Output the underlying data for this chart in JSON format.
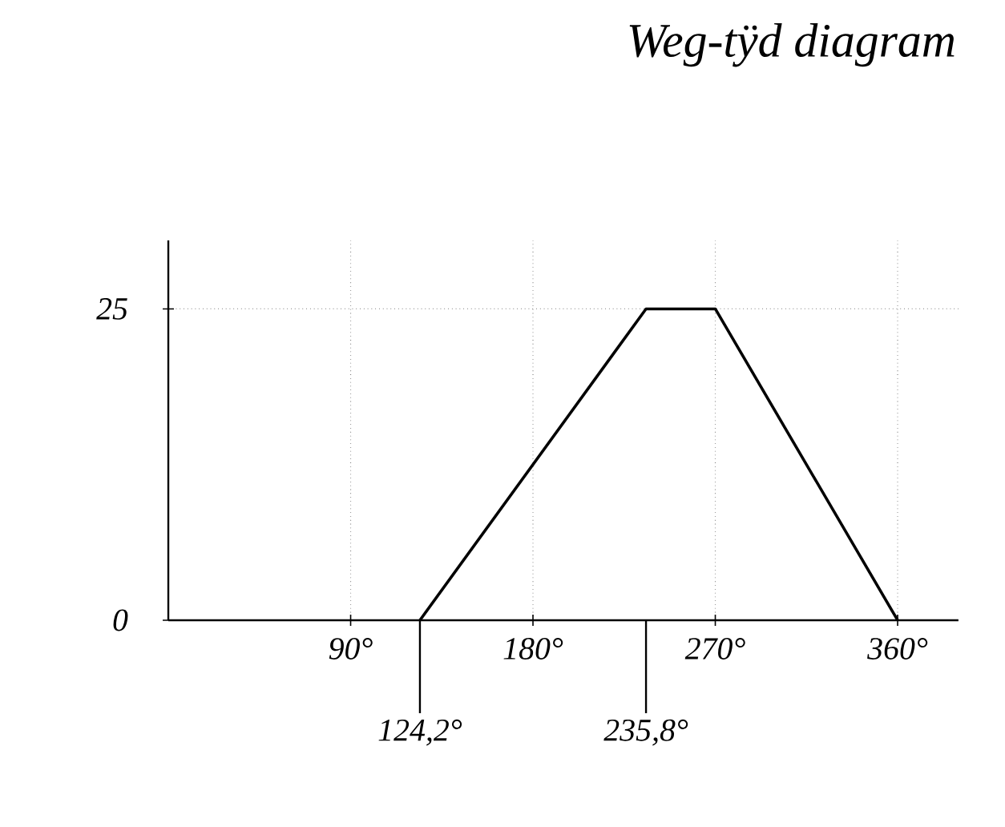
{
  "chart_data": {
    "type": "line",
    "title": "Weg-tÿd diagram",
    "x": [
      124.2,
      235.8,
      270,
      360
    ],
    "series": [
      {
        "color": "#000000",
        "values": [
          0,
          25,
          25,
          0
        ]
      }
    ],
    "xlim": [
      0,
      390
    ],
    "ylim": [
      0,
      30.5
    ],
    "xticks": [
      {
        "value": 90,
        "label": "90°"
      },
      {
        "value": 180,
        "label": "180°"
      },
      {
        "value": 270,
        "label": "270°"
      },
      {
        "value": 360,
        "label": "360°"
      }
    ],
    "yticks": [
      0,
      25
    ],
    "ref_lines": [
      {
        "axis": "x",
        "value": 124.2,
        "label": "124,2°",
        "color": "#000000"
      },
      {
        "axis": "x",
        "value": 235.8,
        "label": "235,8°",
        "color": "#000000"
      }
    ],
    "grid": true,
    "marker": "none",
    "line_style": "solid"
  }
}
